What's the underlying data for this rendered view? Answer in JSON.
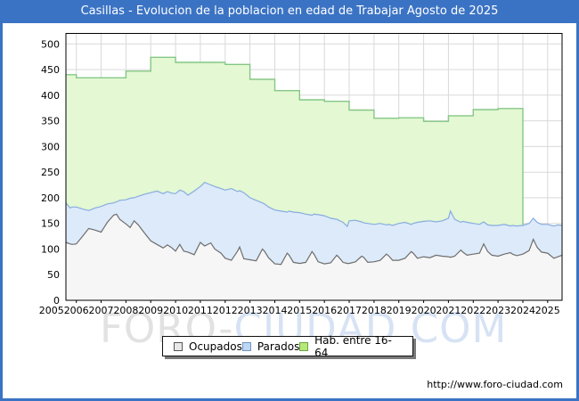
{
  "title": "Casillas - Evolucion de la poblacion en edad de Trabajar Agosto de 2025",
  "watermark": {
    "part1": "FORO-",
    "part2": "CIUDAD.COM"
  },
  "footer": {
    "url": "http://www.foro-ciudad.com"
  },
  "chart_data": {
    "type": "area",
    "stacked": true,
    "title": "Casillas - Evolucion de la poblacion en edad de Trabajar Agosto de 2025",
    "xlabel": "",
    "ylabel": "",
    "ylim": [
      0,
      500
    ],
    "x_start": 2005.58,
    "x_end": 2025.58,
    "grid": true,
    "legend_position": "bottom",
    "colors": {
      "grid": "#d9d9d9",
      "plot_border": "#000000",
      "frame": "#3b73c4"
    },
    "y_ticks": [
      0,
      50,
      100,
      150,
      200,
      250,
      300,
      350,
      400,
      450,
      500
    ],
    "x_ticks": [
      2005,
      2006,
      2007,
      2008,
      2009,
      2010,
      2011,
      2012,
      2013,
      2014,
      2015,
      2016,
      2017,
      2018,
      2019,
      2020,
      2021,
      2022,
      2023,
      2024,
      2025
    ],
    "x": [
      2005.58,
      2005.75,
      2005.83,
      2006.0,
      2006.25,
      2006.5,
      2006.75,
      2007.0,
      2007.25,
      2007.5,
      2007.62,
      2007.75,
      2008.0,
      2008.17,
      2008.33,
      2008.5,
      2008.75,
      2009.0,
      2009.25,
      2009.5,
      2009.67,
      2009.83,
      2010.0,
      2010.17,
      2010.33,
      2010.5,
      2010.75,
      2011.0,
      2011.17,
      2011.42,
      2011.58,
      2011.83,
      2012.0,
      2012.25,
      2012.5,
      2012.58,
      2012.75,
      2013.0,
      2013.25,
      2013.5,
      2013.58,
      2013.75,
      2014.0,
      2014.25,
      2014.5,
      2014.58,
      2014.75,
      2015.0,
      2015.25,
      2015.5,
      2015.58,
      2015.75,
      2016.0,
      2016.25,
      2016.5,
      2016.58,
      2016.75,
      2016.92,
      2017.0,
      2017.25,
      2017.5,
      2017.58,
      2017.75,
      2018.0,
      2018.25,
      2018.5,
      2018.58,
      2018.75,
      2019.0,
      2019.25,
      2019.5,
      2019.58,
      2019.75,
      2020.0,
      2020.25,
      2020.5,
      2020.75,
      2021.0,
      2021.08,
      2021.25,
      2021.5,
      2021.58,
      2021.75,
      2022.0,
      2022.25,
      2022.42,
      2022.58,
      2022.75,
      2023.0,
      2023.25,
      2023.5,
      2023.58,
      2023.75,
      2024.0,
      2024.25,
      2024.42,
      2024.58,
      2024.75,
      2025.0,
      2025.25,
      2025.42,
      2025.58
    ],
    "series": [
      {
        "name": "Ocupados",
        "fill": "#f6f6f6",
        "line": "#6e6e6e",
        "swatch_fill": "#e8e8e8",
        "swatch_border": "#555555",
        "values": [
          113,
          110,
          109,
          110,
          125,
          140,
          137,
          133,
          152,
          166,
          168,
          158,
          149,
          142,
          155,
          147,
          131,
          116,
          109,
          102,
          108,
          103,
          96,
          109,
          96,
          94,
          89,
          113,
          106,
          112,
          100,
          92,
          82,
          78,
          96,
          104,
          81,
          79,
          77,
          100,
          96,
          83,
          71,
          70,
          92,
          88,
          74,
          72,
          74,
          95,
          90,
          75,
          71,
          73,
          88,
          84,
          74,
          72,
          72,
          75,
          86,
          84,
          74,
          75,
          78,
          90,
          87,
          78,
          78,
          82,
          95,
          92,
          82,
          85,
          83,
          88,
          86,
          85,
          84,
          86,
          98,
          94,
          88,
          90,
          92,
          110,
          95,
          88,
          86,
          90,
          93,
          90,
          87,
          90,
          97,
          119,
          103,
          94,
          92,
          82,
          85,
          88
        ]
      },
      {
        "name": "Parados",
        "fill": "#dceafa",
        "line": "#88acde",
        "swatch_fill": "#bcd8f5",
        "swatch_border": "#6e94c0",
        "values": [
          77,
          70,
          73,
          72,
          53,
          35,
          43,
          50,
          36,
          24,
          24,
          37,
          47,
          57,
          45,
          56,
          76,
          94,
          104,
          106,
          104,
          106,
          112,
          106,
          116,
          111,
          124,
          109,
          124,
          113,
          122,
          126,
          133,
          140,
          116,
          110,
          129,
          121,
          118,
          90,
          92,
          99,
          105,
          104,
          80,
          86,
          98,
          99,
          94,
          71,
          78,
          92,
          94,
          87,
          70,
          72,
          78,
          72,
          83,
          81,
          67,
          67,
          76,
          73,
          72,
          57,
          61,
          68,
          72,
          70,
          53,
          58,
          70,
          69,
          72,
          65,
          69,
          75,
          90,
          72,
          54,
          60,
          64,
          60,
          56,
          43,
          52,
          58,
          60,
          58,
          52,
          56,
          58,
          56,
          53,
          41,
          49,
          54,
          56,
          63,
          62,
          58
        ]
      },
      {
        "name": "Hab. entre 16-64",
        "fill": "#e3f8d3",
        "line": "#85c785",
        "swatch_fill": "#b5e878",
        "swatch_border": "#6aa540",
        "annual": true,
        "years": [
          2005,
          2006,
          2007,
          2008,
          2009,
          2010,
          2011,
          2012,
          2013,
          2014,
          2015,
          2016,
          2017,
          2018,
          2019,
          2020,
          2021,
          2022,
          2023
        ],
        "values": [
          440,
          434,
          434,
          447,
          474,
          464,
          464,
          460,
          431,
          409,
          391,
          388,
          371,
          355,
          356,
          349,
          360,
          372,
          374
        ],
        "ends_at": 2024.0
      }
    ]
  }
}
